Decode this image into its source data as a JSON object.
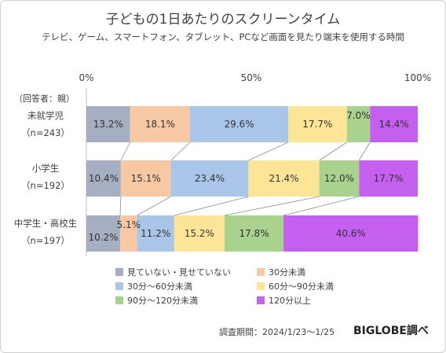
{
  "chart_data": {
    "type": "bar",
    "orientation": "horizontal",
    "stacked": "percent",
    "title": "子どもの1日あたりのスクリーンタイム",
    "subtitle": "テレビ、ゲーム、スマートフォン、タブレット、PCなど画面を見たり端末を使用する時間",
    "xlim": [
      0,
      100
    ],
    "x_ticks": [
      "0%",
      "50%",
      "100%"
    ],
    "respondent_label": "（回答者：親）",
    "categories": [
      {
        "name": "未就学児",
        "n": "（n=243）"
      },
      {
        "name": "小学生",
        "n": "（n=192）"
      },
      {
        "name": "中学生・高校生",
        "n": "（n=197）"
      }
    ],
    "series": [
      {
        "name": "見ていない・見せていない",
        "color": "#a6afc1",
        "values": [
          13.2,
          10.4,
          10.2
        ],
        "labels": [
          "13.2%",
          "10.4%",
          "10.2%"
        ]
      },
      {
        "name": "30分未満",
        "color": "#f7c8a4",
        "values": [
          18.1,
          15.1,
          5.1
        ],
        "labels": [
          "18.1%",
          "15.1%",
          "5.1%"
        ]
      },
      {
        "name": "30分〜60分未満",
        "color": "#a9c6e8",
        "values": [
          29.6,
          23.4,
          11.2
        ],
        "labels": [
          "29.6%",
          "23.4%",
          "11.2%"
        ]
      },
      {
        "name": "60分〜90分未満",
        "color": "#fde598",
        "values": [
          17.7,
          21.4,
          15.2
        ],
        "labels": [
          "17.7%",
          "21.4%",
          "15.2%"
        ]
      },
      {
        "name": "90分〜120分未満",
        "color": "#a9d28f",
        "values": [
          7.0,
          12.0,
          17.8
        ],
        "labels": [
          "7.0%",
          "12.0%",
          "17.8%"
        ]
      },
      {
        "name": "120分以上",
        "color": "#c45ff0",
        "values": [
          14.4,
          17.7,
          40.6
        ],
        "labels": [
          "14.4%",
          "17.7%",
          "40.6%"
        ]
      }
    ],
    "legend_position": "bottom",
    "grid": false
  },
  "footnote": "調査期間：2024/1/23〜1/25",
  "brand": "BIGLOBE調べ"
}
